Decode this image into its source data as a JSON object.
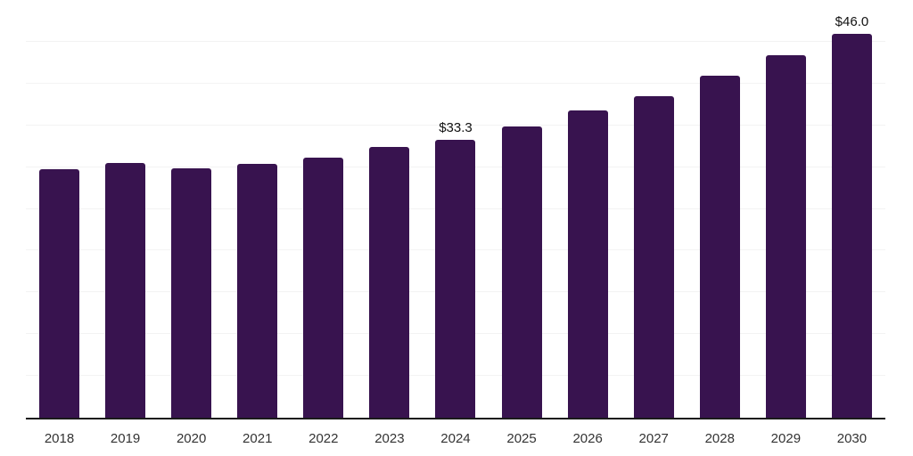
{
  "chart_data": {
    "type": "bar",
    "title": "",
    "categories": [
      "2018",
      "2019",
      "2020",
      "2021",
      "2022",
      "2023",
      "2024",
      "2025",
      "2026",
      "2027",
      "2028",
      "2029",
      "2030"
    ],
    "values": [
      29.7,
      30.5,
      29.9,
      30.4,
      31.1,
      32.4,
      33.3,
      34.9,
      36.8,
      38.5,
      40.9,
      43.4,
      46.0
    ],
    "annotations": [
      {
        "category": "2024",
        "label": "$33.3"
      },
      {
        "category": "2030",
        "label": "$46.0"
      }
    ],
    "xlabel": "",
    "ylabel": "",
    "ylim": [
      0,
      50
    ],
    "grid_step": 5,
    "grid": true,
    "legend": false,
    "colors": {
      "bar": "#38134f",
      "axis_line": "#1a1a1a",
      "gridline": "#f3f3f3",
      "tick_label": "#333333",
      "annotation": "#111111",
      "background": "#ffffff"
    }
  }
}
